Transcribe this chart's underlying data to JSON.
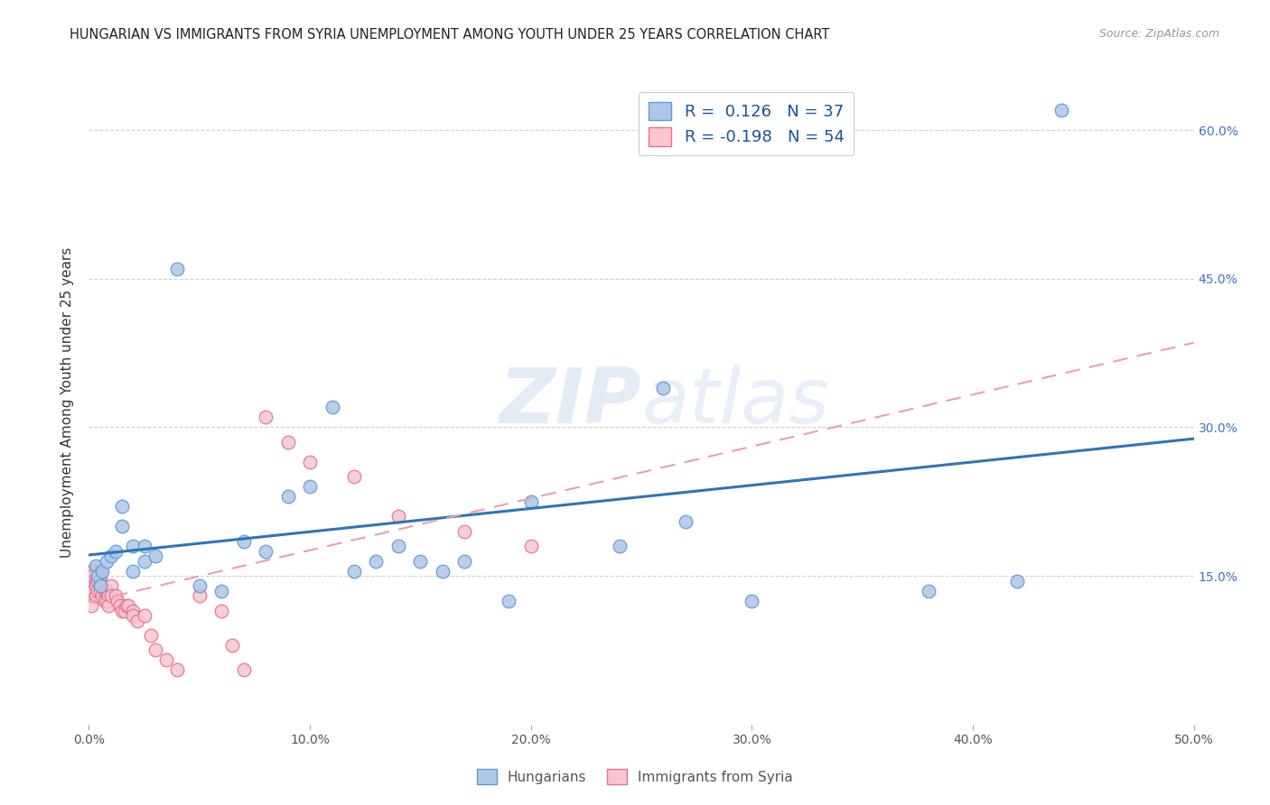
{
  "title": "HUNGARIAN VS IMMIGRANTS FROM SYRIA UNEMPLOYMENT AMONG YOUTH UNDER 25 YEARS CORRELATION CHART",
  "source": "Source: ZipAtlas.com",
  "ylabel": "Unemployment Among Youth under 25 years",
  "xlim": [
    0.0,
    0.5
  ],
  "ylim": [
    0.0,
    0.65
  ],
  "xticks": [
    0.0,
    0.1,
    0.2,
    0.3,
    0.4,
    0.5
  ],
  "xticklabels": [
    "0.0%",
    "10.0%",
    "20.0%",
    "30.0%",
    "40.0%",
    "50.0%"
  ],
  "ytick_positions": [
    0.15,
    0.3,
    0.45,
    0.6
  ],
  "right_ytick_labels": [
    "15.0%",
    "30.0%",
    "45.0%",
    "60.0%"
  ],
  "grid_color": "#cccccc",
  "background_color": "#ffffff",
  "hungarian_color": "#aec6e8",
  "syrian_color": "#f9c6cf",
  "hungarian_edge_color": "#5b9bd5",
  "syrian_edge_color": "#e87090",
  "trend_blue_color": "#2E75B6",
  "trend_pink_color": "#e8a0b0",
  "legend_label1": "Hungarians",
  "legend_label2": "Immigrants from Syria",
  "watermark_zip": "ZIP",
  "watermark_atlas": "atlas",
  "hungarian_x": [
    0.003,
    0.004,
    0.005,
    0.006,
    0.008,
    0.01,
    0.012,
    0.015,
    0.015,
    0.02,
    0.02,
    0.025,
    0.025,
    0.03,
    0.04,
    0.05,
    0.06,
    0.07,
    0.08,
    0.09,
    0.1,
    0.11,
    0.12,
    0.13,
    0.14,
    0.15,
    0.16,
    0.17,
    0.19,
    0.2,
    0.24,
    0.26,
    0.27,
    0.3,
    0.38,
    0.42,
    0.44
  ],
  "hungarian_y": [
    0.16,
    0.15,
    0.14,
    0.155,
    0.165,
    0.17,
    0.175,
    0.2,
    0.22,
    0.18,
    0.155,
    0.18,
    0.165,
    0.17,
    0.46,
    0.14,
    0.135,
    0.185,
    0.175,
    0.23,
    0.24,
    0.32,
    0.155,
    0.165,
    0.18,
    0.165,
    0.155,
    0.165,
    0.125,
    0.225,
    0.18,
    0.34,
    0.205,
    0.125,
    0.135,
    0.145,
    0.62
  ],
  "syrian_x": [
    0.001,
    0.001,
    0.001,
    0.001,
    0.001,
    0.002,
    0.002,
    0.002,
    0.002,
    0.003,
    0.003,
    0.003,
    0.004,
    0.004,
    0.005,
    0.005,
    0.005,
    0.005,
    0.006,
    0.006,
    0.007,
    0.007,
    0.008,
    0.008,
    0.009,
    0.009,
    0.01,
    0.01,
    0.012,
    0.013,
    0.014,
    0.015,
    0.016,
    0.017,
    0.018,
    0.02,
    0.02,
    0.022,
    0.025,
    0.028,
    0.03,
    0.035,
    0.04,
    0.05,
    0.06,
    0.065,
    0.07,
    0.08,
    0.09,
    0.1,
    0.12,
    0.14,
    0.17,
    0.2
  ],
  "syrian_y": [
    0.155,
    0.145,
    0.14,
    0.13,
    0.12,
    0.155,
    0.15,
    0.145,
    0.135,
    0.145,
    0.14,
    0.13,
    0.145,
    0.135,
    0.155,
    0.15,
    0.145,
    0.135,
    0.14,
    0.13,
    0.135,
    0.125,
    0.135,
    0.125,
    0.13,
    0.12,
    0.14,
    0.13,
    0.13,
    0.125,
    0.12,
    0.115,
    0.115,
    0.12,
    0.12,
    0.115,
    0.11,
    0.105,
    0.11,
    0.09,
    0.075,
    0.065,
    0.055,
    0.13,
    0.115,
    0.08,
    0.055,
    0.31,
    0.285,
    0.265,
    0.25,
    0.21,
    0.195,
    0.18
  ]
}
